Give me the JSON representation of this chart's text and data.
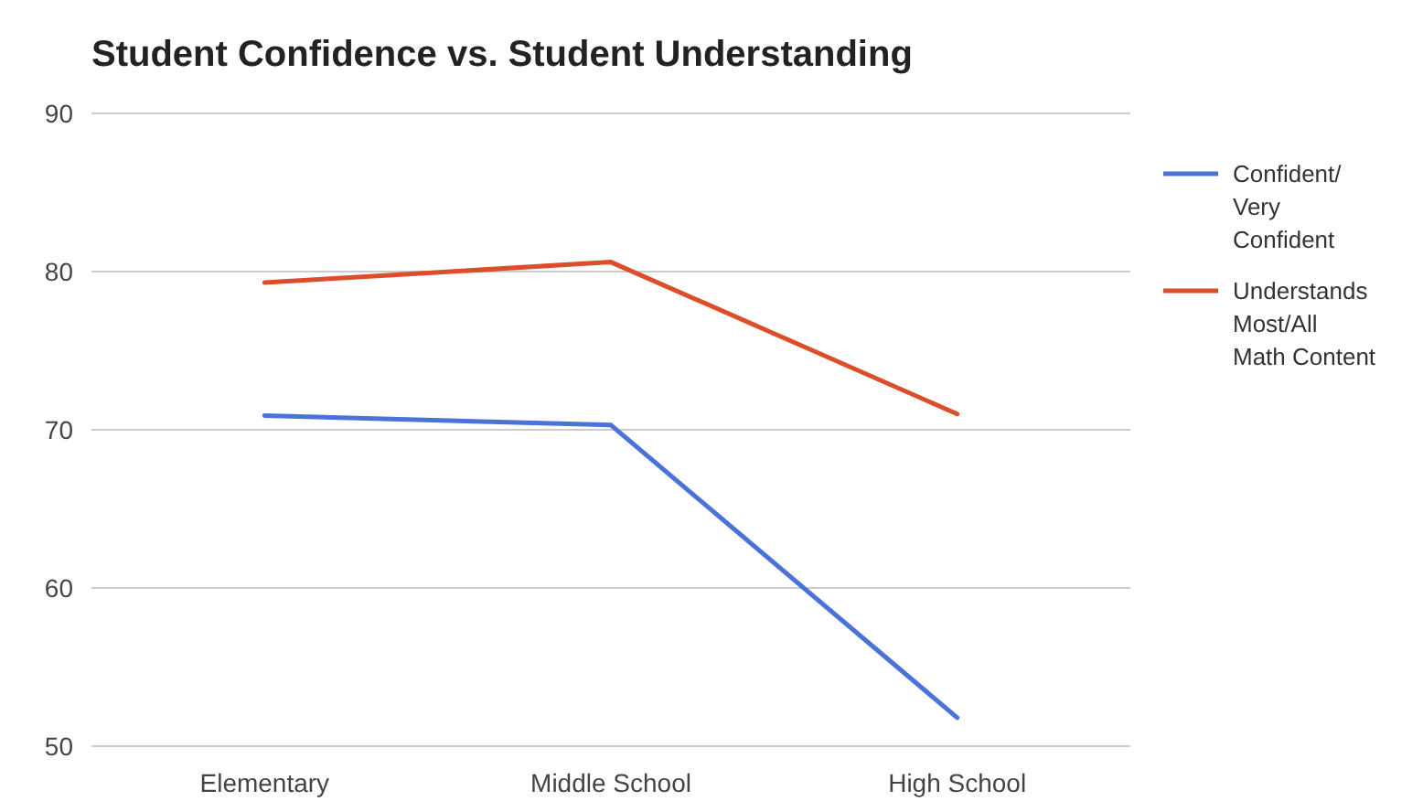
{
  "chart_data": {
    "type": "line",
    "title": "Student Confidence vs. Student Understanding",
    "categories": [
      "Elementary",
      "Middle School",
      "High School"
    ],
    "series": [
      {
        "name": "Confident/ Very Confident",
        "color": "#4a72d8",
        "values": [
          70.9,
          70.3,
          51.8
        ]
      },
      {
        "name": "Understands Most/All Math Content",
        "color": "#dc4d29",
        "values": [
          79.3,
          80.6,
          71.0
        ]
      }
    ],
    "ylim": [
      50,
      90
    ],
    "yticks": [
      50,
      60,
      70,
      80,
      90
    ],
    "grid": "y",
    "legend": "right",
    "marker": "none",
    "line_style": "solid"
  }
}
